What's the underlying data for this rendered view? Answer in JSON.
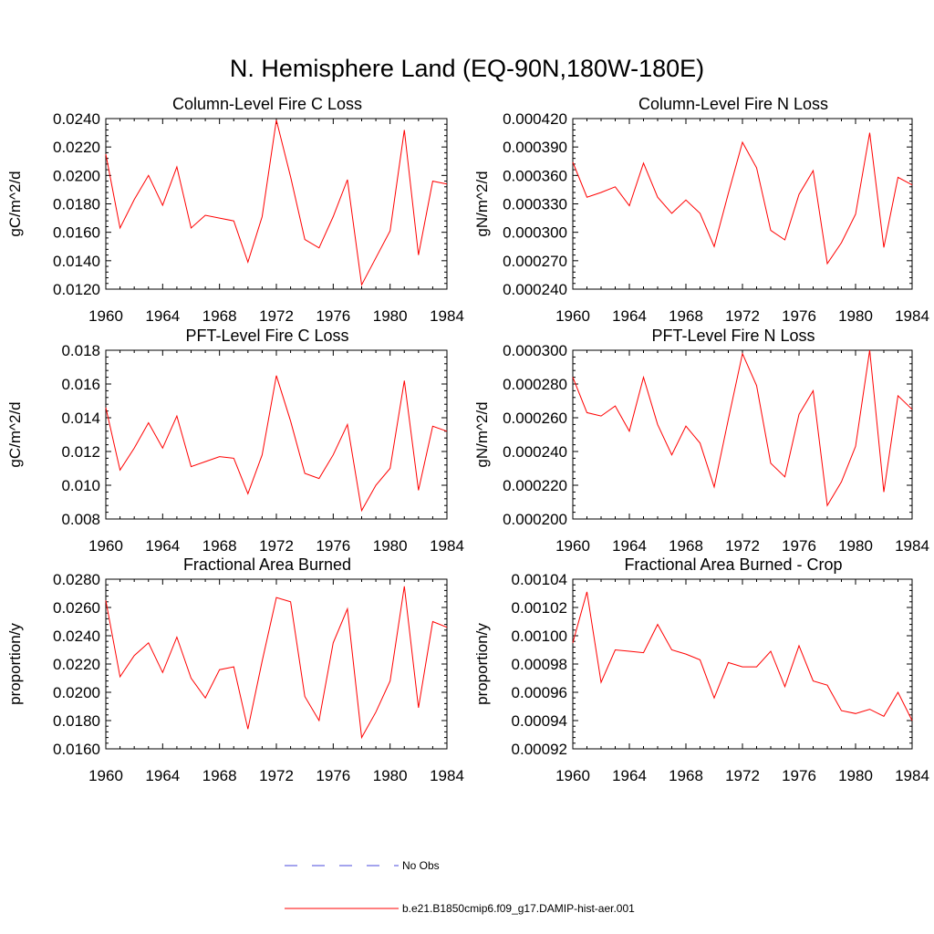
{
  "figure": {
    "title": "N. Hemisphere Land (EQ-90N,180W-180E)",
    "line_color": "#ff0000",
    "obs_color": "#4a4adc"
  },
  "legend": {
    "obs_label": "No Obs",
    "model_label": "b.e21.B1850cmip6.f09_g17.DAMIP-hist-aer.001"
  },
  "chart_data": [
    {
      "type": "line",
      "title": "Column-Level Fire C Loss",
      "ylabel": "gC/m^2/d",
      "xlim": [
        1960,
        1984
      ],
      "ylim": [
        0.012,
        0.024
      ],
      "xticks": [
        "1960",
        "1964",
        "1968",
        "1972",
        "1976",
        "1980",
        "1984"
      ],
      "yticks": [
        "0.0120",
        "0.0140",
        "0.0160",
        "0.0180",
        "0.0200",
        "0.0220",
        "0.0240"
      ],
      "x": [
        1960,
        1961,
        1962,
        1963,
        1964,
        1965,
        1966,
        1967,
        1968,
        1969,
        1970,
        1971,
        1972,
        1973,
        1974,
        1975,
        1976,
        1977,
        1978,
        1979,
        1980,
        1981,
        1982,
        1983,
        1984
      ],
      "series": [
        {
          "values": [
            0.0215,
            0.0163,
            0.0183,
            0.02,
            0.0179,
            0.0206,
            0.0163,
            0.0172,
            0.017,
            0.0168,
            0.0139,
            0.0171,
            0.0239,
            0.0199,
            0.0155,
            0.0149,
            0.0171,
            0.0197,
            0.0123,
            0.0142,
            0.0161,
            0.0232,
            0.0144,
            0.0196,
            0.0194
          ]
        }
      ]
    },
    {
      "type": "line",
      "title": "Column-Level Fire N Loss",
      "ylabel": "gN/m^2/d",
      "xlim": [
        1960,
        1984
      ],
      "ylim": [
        0.00024,
        0.00042
      ],
      "xticks": [
        "1960",
        "1964",
        "1968",
        "1972",
        "1976",
        "1980",
        "1984"
      ],
      "yticks": [
        "0.000240",
        "0.000270",
        "0.000300",
        "0.000330",
        "0.000360",
        "0.000390",
        "0.000420"
      ],
      "x": [
        1960,
        1961,
        1962,
        1963,
        1964,
        1965,
        1966,
        1967,
        1968,
        1969,
        1970,
        1971,
        1972,
        1973,
        1974,
        1975,
        1976,
        1977,
        1978,
        1979,
        1980,
        1981,
        1982,
        1983,
        1984
      ],
      "series": [
        {
          "values": [
            0.000374,
            0.000337,
            0.000342,
            0.000348,
            0.000328,
            0.000373,
            0.000337,
            0.00032,
            0.000334,
            0.00032,
            0.000285,
            0.000341,
            0.000395,
            0.000368,
            0.000302,
            0.000292,
            0.00034,
            0.000365,
            0.000267,
            0.000289,
            0.000319,
            0.000405,
            0.000284,
            0.000358,
            0.00035
          ]
        }
      ]
    },
    {
      "type": "line",
      "title": "PFT-Level Fire C Loss",
      "ylabel": "gC/m^2/d",
      "xlim": [
        1960,
        1984
      ],
      "ylim": [
        0.008,
        0.018
      ],
      "xticks": [
        "1960",
        "1964",
        "1968",
        "1972",
        "1976",
        "1980",
        "1984"
      ],
      "yticks": [
        "0.008",
        "0.010",
        "0.012",
        "0.014",
        "0.016",
        "0.018"
      ],
      "x": [
        1960,
        1961,
        1962,
        1963,
        1964,
        1965,
        1966,
        1967,
        1968,
        1969,
        1970,
        1971,
        1972,
        1973,
        1974,
        1975,
        1976,
        1977,
        1978,
        1979,
        1980,
        1981,
        1982,
        1983,
        1984
      ],
      "series": [
        {
          "values": [
            0.0146,
            0.0109,
            0.0122,
            0.0137,
            0.0122,
            0.0141,
            0.0111,
            0.0114,
            0.0117,
            0.0116,
            0.0095,
            0.0118,
            0.0165,
            0.0138,
            0.0107,
            0.0104,
            0.0118,
            0.0136,
            0.0085,
            0.01,
            0.011,
            0.0162,
            0.0097,
            0.0135,
            0.0132
          ]
        }
      ]
    },
    {
      "type": "line",
      "title": "PFT-Level Fire N Loss",
      "ylabel": "gN/m^2/d",
      "xlim": [
        1960,
        1984
      ],
      "ylim": [
        0.0002,
        0.0003
      ],
      "xticks": [
        "1960",
        "1964",
        "1968",
        "1972",
        "1976",
        "1980",
        "1984"
      ],
      "yticks": [
        "0.000200",
        "0.000220",
        "0.000240",
        "0.000260",
        "0.000280",
        "0.000300"
      ],
      "x": [
        1960,
        1961,
        1962,
        1963,
        1964,
        1965,
        1966,
        1967,
        1968,
        1969,
        1970,
        1971,
        1972,
        1973,
        1974,
        1975,
        1976,
        1977,
        1978,
        1979,
        1980,
        1981,
        1982,
        1983,
        1984
      ],
      "series": [
        {
          "values": [
            0.000284,
            0.000263,
            0.000261,
            0.000267,
            0.000252,
            0.000284,
            0.000256,
            0.000238,
            0.000255,
            0.000245,
            0.000219,
            0.000259,
            0.000298,
            0.000279,
            0.000233,
            0.000225,
            0.000262,
            0.000276,
            0.000208,
            0.000222,
            0.000243,
            0.0003,
            0.000216,
            0.000273,
            0.000265
          ]
        }
      ]
    },
    {
      "type": "line",
      "title": "Fractional Area Burned",
      "ylabel": "proportion/y",
      "xlim": [
        1960,
        1984
      ],
      "ylim": [
        0.016,
        0.028
      ],
      "xticks": [
        "1960",
        "1964",
        "1968",
        "1972",
        "1976",
        "1980",
        "1984"
      ],
      "yticks": [
        "0.0160",
        "0.0180",
        "0.0200",
        "0.0220",
        "0.0240",
        "0.0260",
        "0.0280"
      ],
      "x": [
        1960,
        1961,
        1962,
        1963,
        1964,
        1965,
        1966,
        1967,
        1968,
        1969,
        1970,
        1971,
        1972,
        1973,
        1974,
        1975,
        1976,
        1977,
        1978,
        1979,
        1980,
        1981,
        1982,
        1983,
        1984
      ],
      "series": [
        {
          "values": [
            0.0265,
            0.0211,
            0.0226,
            0.0235,
            0.0214,
            0.0239,
            0.021,
            0.0196,
            0.0216,
            0.0218,
            0.0174,
            0.0222,
            0.0267,
            0.0264,
            0.0197,
            0.018,
            0.0235,
            0.0259,
            0.0168,
            0.0186,
            0.0208,
            0.0275,
            0.0189,
            0.025,
            0.0246
          ]
        }
      ]
    },
    {
      "type": "line",
      "title": "Fractional Area Burned - Crop",
      "ylabel": "proportion/y",
      "xlim": [
        1960,
        1984
      ],
      "ylim": [
        0.00092,
        0.00104
      ],
      "xticks": [
        "1960",
        "1964",
        "1968",
        "1972",
        "1976",
        "1980",
        "1984"
      ],
      "yticks": [
        "0.00092",
        "0.00094",
        "0.00096",
        "0.00098",
        "0.00100",
        "0.00102",
        "0.00104"
      ],
      "x": [
        1960,
        1961,
        1962,
        1963,
        1964,
        1965,
        1966,
        1967,
        1968,
        1969,
        1970,
        1971,
        1972,
        1973,
        1974,
        1975,
        1976,
        1977,
        1978,
        1979,
        1980,
        1981,
        1982,
        1983,
        1984
      ],
      "series": [
        {
          "values": [
            0.000995,
            0.001031,
            0.000967,
            0.00099,
            0.000989,
            0.000988,
            0.001008,
            0.00099,
            0.000987,
            0.000983,
            0.000956,
            0.000981,
            0.000978,
            0.000978,
            0.000989,
            0.000964,
            0.000993,
            0.000968,
            0.000965,
            0.000947,
            0.000945,
            0.000948,
            0.000943,
            0.00096,
            0.00094
          ]
        }
      ]
    }
  ]
}
